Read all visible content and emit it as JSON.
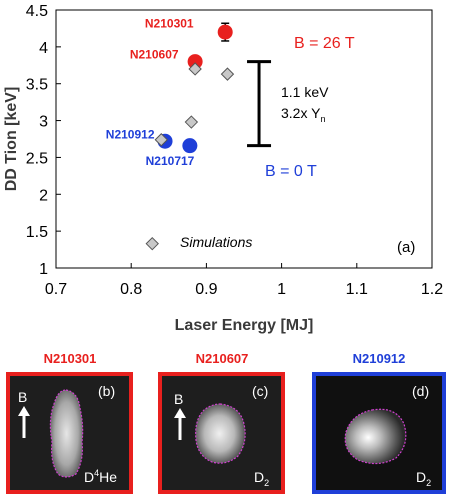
{
  "chart_data": {
    "type": "scatter",
    "xlabel": "Laser Energy [MJ]",
    "ylabel": "DD Tion [keV]",
    "xlim": [
      0.7,
      1.2
    ],
    "ylim": [
      1,
      4.5
    ],
    "xticks": [
      "0.7",
      "0.8",
      "0.9",
      "1",
      "1.1",
      "1.2"
    ],
    "yticks": [
      "1",
      "1.5",
      "2",
      "2.5",
      "3",
      "3.5",
      "4",
      "4.5"
    ],
    "grid": false,
    "panel_label": "(a)",
    "series": [
      {
        "name": "N210301",
        "color": "#e8201e",
        "points": [
          {
            "x": 0.925,
            "y": 4.2,
            "yerr": 0.12
          }
        ]
      },
      {
        "name": "N210607",
        "color": "#e8201e",
        "points": [
          {
            "x": 0.885,
            "y": 3.8
          }
        ]
      },
      {
        "name": "N210912",
        "color": "#1f3fd8",
        "points": [
          {
            "x": 0.845,
            "y": 2.72
          }
        ]
      },
      {
        "name": "N210717",
        "color": "#1f3fd8",
        "points": [
          {
            "x": 0.878,
            "y": 2.66
          }
        ]
      }
    ],
    "simulations": {
      "name": "Simulations",
      "color": "#c8c8c8",
      "points": [
        {
          "x": 0.885,
          "y": 3.7
        },
        {
          "x": 0.928,
          "y": 3.63
        },
        {
          "x": 0.88,
          "y": 2.98
        },
        {
          "x": 0.84,
          "y": 2.74
        }
      ],
      "legend_point": {
        "x": 0.828,
        "y": 1.33
      }
    },
    "annotations": {
      "b26": "B = 26 T",
      "b0": "B = 0 T",
      "delta_line1": "1.1 keV",
      "delta_line2_main": "3.2x Y",
      "delta_line2_sub": "n",
      "bracket": {
        "x": 0.97,
        "y_top": 3.8,
        "y_bottom": 2.66
      }
    }
  },
  "panels": [
    {
      "title": "N210301",
      "color": "#e8201e",
      "label": "(b)",
      "b_label": "B",
      "species_prefix": "D",
      "species_sup": "4",
      "species_main": "He"
    },
    {
      "title": "N210607",
      "color": "#e8201e",
      "label": "(c)",
      "b_label": "B",
      "species_main": "D",
      "species_sub": "2"
    },
    {
      "title": "N210912",
      "color": "#1f3fd8",
      "label": "(d)",
      "species_main": "D",
      "species_sub": "2"
    }
  ]
}
